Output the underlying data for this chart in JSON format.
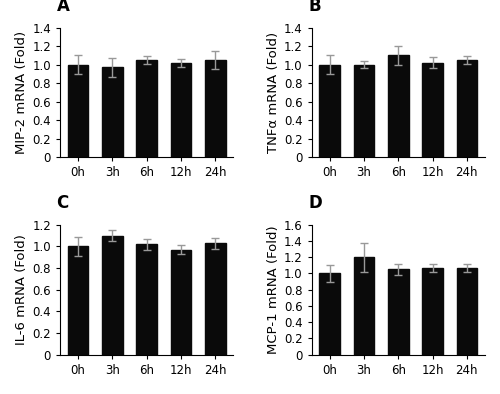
{
  "panels": [
    {
      "label": "A",
      "ylabel": "MIP-2 mRNA (Fold)",
      "categories": [
        "0h",
        "3h",
        "6h",
        "12h",
        "24h"
      ],
      "values": [
        1.0,
        0.97,
        1.05,
        1.02,
        1.05
      ],
      "errors": [
        0.1,
        0.1,
        0.04,
        0.04,
        0.1
      ],
      "ylim": [
        0,
        1.4
      ],
      "yticks": [
        0,
        0.2,
        0.4,
        0.6,
        0.8,
        1.0,
        1.2,
        1.4
      ]
    },
    {
      "label": "B",
      "ylabel": "TNFα mRNA (Fold)",
      "categories": [
        "0h",
        "3h",
        "6h",
        "12h",
        "24h"
      ],
      "values": [
        1.0,
        1.0,
        1.1,
        1.02,
        1.05
      ],
      "errors": [
        0.1,
        0.04,
        0.1,
        0.06,
        0.04
      ],
      "ylim": [
        0,
        1.4
      ],
      "yticks": [
        0,
        0.2,
        0.4,
        0.6,
        0.8,
        1.0,
        1.2,
        1.4
      ]
    },
    {
      "label": "C",
      "ylabel": "IL-6 mRNA (Fold)",
      "categories": [
        "0h",
        "3h",
        "6h",
        "12h",
        "24h"
      ],
      "values": [
        1.0,
        1.1,
        1.02,
        0.97,
        1.03
      ],
      "errors": [
        0.09,
        0.05,
        0.05,
        0.04,
        0.05
      ],
      "ylim": [
        0,
        1.2
      ],
      "yticks": [
        0,
        0.2,
        0.4,
        0.6,
        0.8,
        1.0,
        1.2
      ]
    },
    {
      "label": "D",
      "ylabel": "MCP-1 mRNA (Fold)",
      "categories": [
        "0h",
        "3h",
        "6h",
        "12h",
        "24h"
      ],
      "values": [
        1.0,
        1.2,
        1.05,
        1.07,
        1.07
      ],
      "errors": [
        0.1,
        0.18,
        0.07,
        0.05,
        0.05
      ],
      "ylim": [
        0,
        1.6
      ],
      "yticks": [
        0,
        0.2,
        0.4,
        0.6,
        0.8,
        1.0,
        1.2,
        1.4,
        1.6
      ]
    }
  ],
  "bar_color": "#0a0a0a",
  "bar_width": 0.6,
  "error_color": "#999999",
  "error_capsize": 3,
  "error_linewidth": 1.0,
  "ylabel_fontsize": 9.5,
  "tick_fontsize": 8.5,
  "panel_label_fontsize": 12,
  "background_color": "#ffffff"
}
